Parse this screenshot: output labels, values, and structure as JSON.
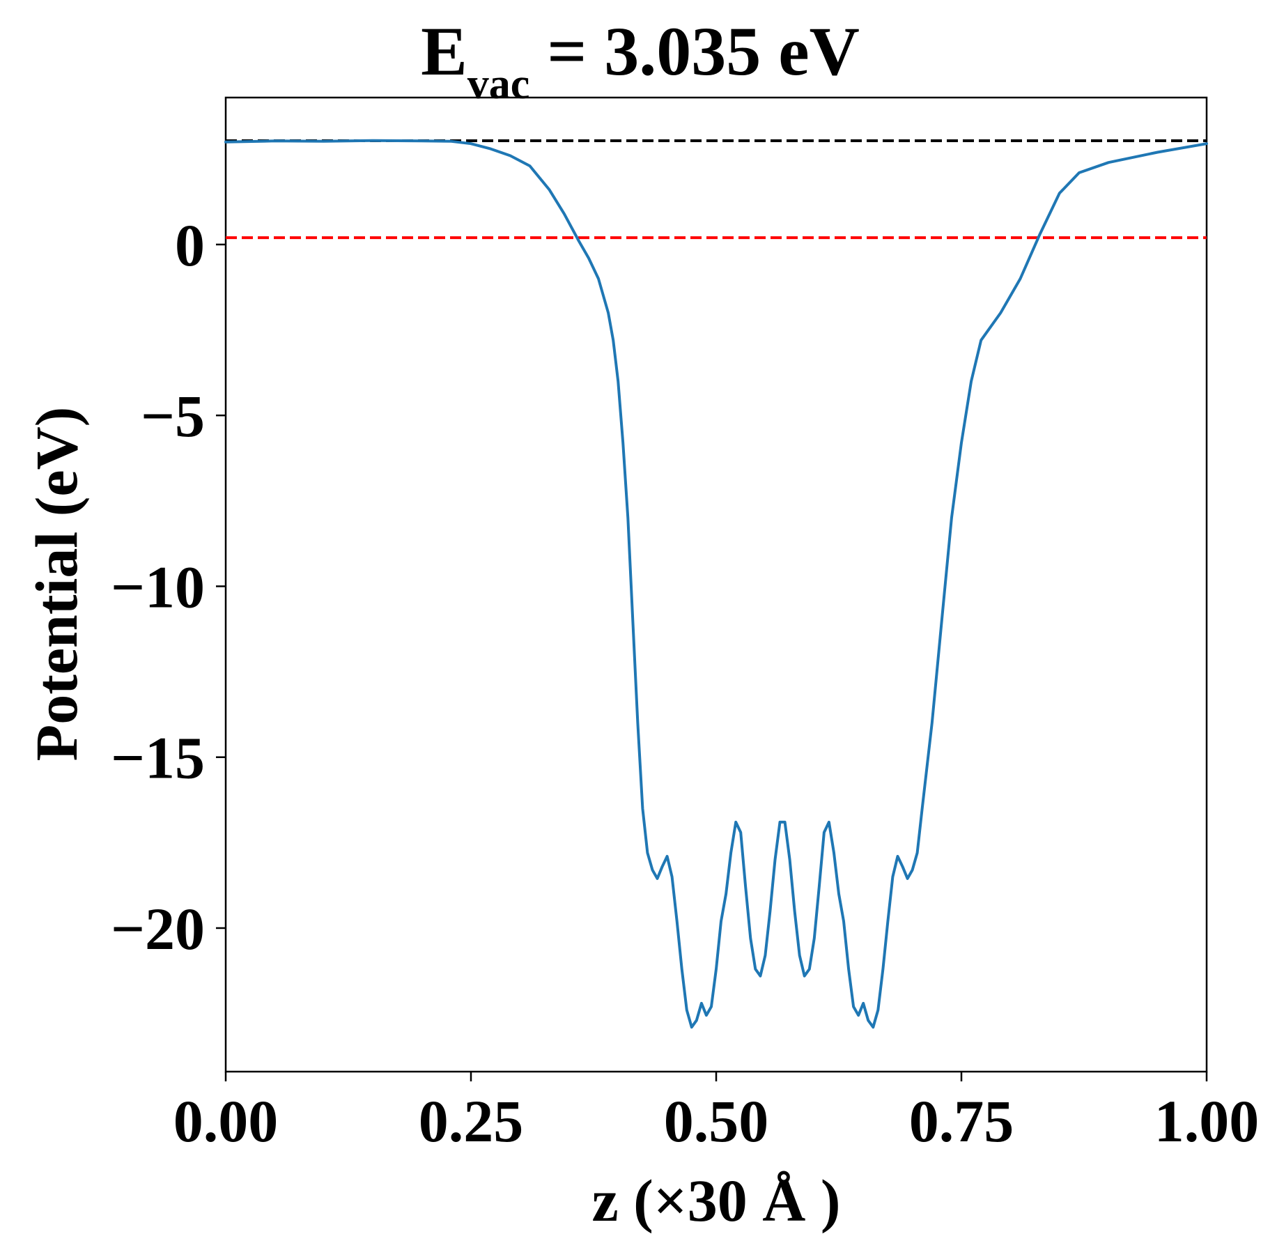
{
  "chart_data": {
    "type": "line",
    "title": {
      "main": "E",
      "subscript": "vac",
      "rest": " = 3.035 eV"
    },
    "xlabel": "z (×30 Å )",
    "ylabel": "Potential (eV)",
    "xlim": [
      0,
      1
    ],
    "ylim": [
      -24.2,
      4.3
    ],
    "xticks": [
      0,
      0.25,
      0.5,
      0.75,
      1.0
    ],
    "xtick_labels": [
      "0.00",
      "0.25",
      "0.50",
      "0.75",
      "1.00"
    ],
    "yticks": [
      0,
      -5,
      -10,
      -15,
      -20
    ],
    "ytick_labels": [
      "0",
      "−5",
      "−10",
      "−15",
      "−20"
    ],
    "grid": false,
    "reference_lines": [
      {
        "y": 3.035,
        "color": "#000000",
        "style": "dashed"
      },
      {
        "y": 0.2,
        "color": "#ff0000",
        "style": "dashed"
      }
    ],
    "series": [
      {
        "color": "#1f77b4",
        "x": [
          0.0,
          0.05,
          0.1,
          0.15,
          0.2,
          0.23,
          0.25,
          0.27,
          0.29,
          0.31,
          0.33,
          0.345,
          0.36,
          0.37,
          0.38,
          0.39,
          0.395,
          0.4,
          0.405,
          0.41,
          0.415,
          0.42,
          0.425,
          0.43,
          0.435,
          0.44,
          0.445,
          0.45,
          0.455,
          0.46,
          0.465,
          0.47,
          0.475,
          0.48,
          0.485,
          0.49,
          0.495,
          0.5,
          0.505,
          0.51,
          0.515,
          0.52,
          0.525,
          0.53,
          0.535,
          0.54,
          0.545,
          0.55,
          0.555,
          0.56,
          0.565,
          0.57,
          0.575,
          0.58,
          0.585,
          0.59,
          0.595,
          0.6,
          0.605,
          0.61,
          0.615,
          0.62,
          0.625,
          0.63,
          0.635,
          0.64,
          0.645,
          0.65,
          0.655,
          0.66,
          0.665,
          0.67,
          0.675,
          0.68,
          0.685,
          0.69,
          0.695,
          0.7,
          0.705,
          0.71,
          0.72,
          0.73,
          0.74,
          0.75,
          0.76,
          0.77,
          0.79,
          0.81,
          0.83,
          0.85,
          0.87,
          0.9,
          0.95,
          1.0
        ],
        "y": [
          3.0,
          3.03,
          3.02,
          3.04,
          3.03,
          3.02,
          2.95,
          2.8,
          2.6,
          2.3,
          1.6,
          0.9,
          0.1,
          -0.4,
          -1.0,
          -2.0,
          -2.8,
          -4.0,
          -5.8,
          -8.0,
          -11.0,
          -14.0,
          -16.5,
          -17.8,
          -18.3,
          -18.55,
          -18.2,
          -17.9,
          -18.5,
          -19.8,
          -21.2,
          -22.4,
          -22.9,
          -22.7,
          -22.2,
          -22.55,
          -22.3,
          -21.2,
          -19.8,
          -19.0,
          -17.8,
          -16.9,
          -17.2,
          -18.8,
          -20.3,
          -21.2,
          -21.4,
          -20.8,
          -19.5,
          -18.0,
          -16.9,
          -16.9,
          -18.0,
          -19.5,
          -20.8,
          -21.4,
          -21.2,
          -20.3,
          -18.8,
          -17.2,
          -16.9,
          -17.8,
          -19.0,
          -19.8,
          -21.2,
          -22.3,
          -22.55,
          -22.2,
          -22.7,
          -22.9,
          -22.4,
          -21.2,
          -19.8,
          -18.5,
          -17.9,
          -18.2,
          -18.55,
          -18.3,
          -17.8,
          -16.5,
          -14.0,
          -11.0,
          -8.0,
          -5.8,
          -4.0,
          -2.8,
          -2.0,
          -1.0,
          0.3,
          1.5,
          2.1,
          2.4,
          2.7,
          2.95
        ]
      }
    ]
  }
}
